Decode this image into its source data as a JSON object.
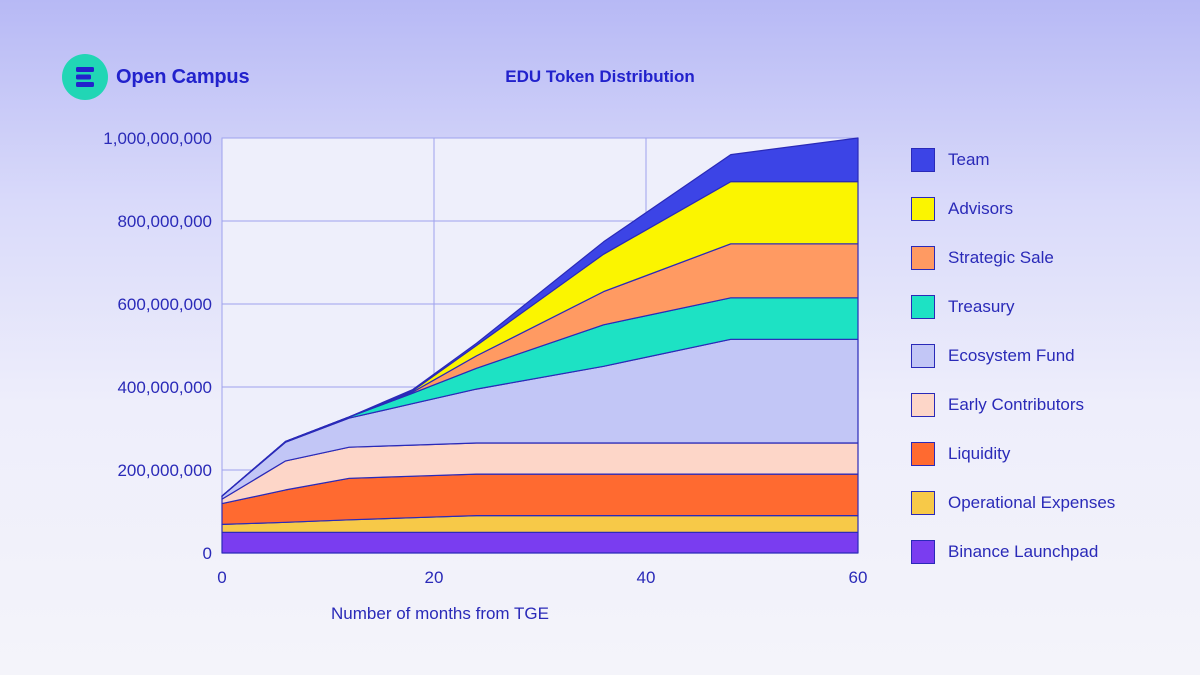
{
  "brand": {
    "name": "Open Campus",
    "logo_icon": "open-campus-logo-icon",
    "logo_color": "#21d6b5"
  },
  "chart_data": {
    "type": "area",
    "stacked": true,
    "title": "EDU Token Distribution",
    "xlabel": "Number of months from TGE",
    "ylabel": "",
    "xlim": [
      0,
      60
    ],
    "ylim": [
      0,
      1000000000
    ],
    "xticks": [
      0,
      20,
      40,
      60
    ],
    "yticks": [
      0,
      200000000,
      400000000,
      600000000,
      800000000,
      1000000000
    ],
    "ytick_labels": [
      "0",
      "200,000,000",
      "400,000,000",
      "600,000,000",
      "800,000,000",
      "1,000,000,000"
    ],
    "grid": true,
    "legend_position": "right",
    "x": [
      0,
      6,
      12,
      18,
      24,
      36,
      48,
      60
    ],
    "series": [
      {
        "name": "Binance Launchpad",
        "color": "#7a3df0",
        "values": [
          50000000,
          50000000,
          50000000,
          50000000,
          50000000,
          50000000,
          50000000,
          50000000
        ]
      },
      {
        "name": "Operational Expenses",
        "color": "#f7c948",
        "values": [
          19000000,
          24000000,
          30000000,
          35000000,
          40000000,
          40000000,
          40000000,
          40000000
        ]
      },
      {
        "name": "Liquidity",
        "color": "#ff6a30",
        "values": [
          50000000,
          78000000,
          100000000,
          100000000,
          100000000,
          100000000,
          100000000,
          100000000
        ]
      },
      {
        "name": "Early Contributors",
        "color": "#fdd6c8",
        "values": [
          11000000,
          70000000,
          75000000,
          75000000,
          75000000,
          75000000,
          75000000,
          75000000
        ]
      },
      {
        "name": "Ecosystem Fund",
        "color": "#c2c6f6",
        "values": [
          7000000,
          45000000,
          70000000,
          100000000,
          130000000,
          185000000,
          250000000,
          250000000
        ]
      },
      {
        "name": "Treasury",
        "color": "#1de2c4",
        "values": [
          0,
          2000000,
          3000000,
          25000000,
          50000000,
          100000000,
          100000000,
          100000000
        ]
      },
      {
        "name": "Strategic Sale",
        "color": "#ff9a62",
        "values": [
          0,
          0,
          0,
          3000000,
          30000000,
          80000000,
          130000000,
          130000000
        ]
      },
      {
        "name": "Advisors",
        "color": "#fbf500",
        "values": [
          0,
          0,
          0,
          3000000,
          25000000,
          90000000,
          150000000,
          150000000
        ]
      },
      {
        "name": "Team",
        "color": "#3c44e6",
        "values": [
          0,
          0,
          0,
          3000000,
          5000000,
          30000000,
          65000000,
          105000000
        ]
      }
    ]
  }
}
